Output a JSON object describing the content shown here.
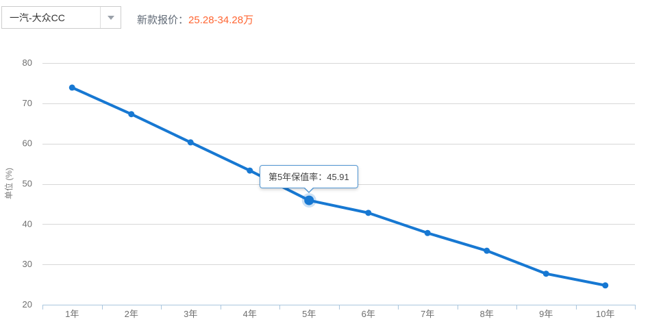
{
  "header": {
    "model_select": {
      "value": "一汽-大众CC"
    },
    "price": {
      "label": "新款报价：",
      "value": "25.28-34.28万",
      "value_color": "#ff6633"
    }
  },
  "chart_data": {
    "type": "line",
    "categories": [
      "1年",
      "2年",
      "3年",
      "4年",
      "5年",
      "6年",
      "7年",
      "8年",
      "9年",
      "10年"
    ],
    "series": [
      {
        "name": "保值率",
        "values": [
          73.9,
          67.3,
          60.3,
          53.3,
          45.91,
          42.8,
          37.8,
          33.4,
          27.7,
          24.8
        ]
      }
    ],
    "title": "",
    "xlabel": "",
    "ylabel": "单位 (%)",
    "ylim": [
      20,
      80
    ],
    "y_ticks": [
      20,
      30,
      40,
      50,
      60,
      70,
      80
    ],
    "grid": true,
    "legend_position": "none",
    "tooltip": {
      "text": "第5年保值率：45.91",
      "point_index": 4
    },
    "colors": {
      "line": "#1778d2",
      "halo_opacity": 0.22,
      "grid": "#d7d7d7",
      "axis": "#aac6de",
      "tick_label": "#6e6e6e",
      "axis_title": "#7a7a7a"
    }
  }
}
